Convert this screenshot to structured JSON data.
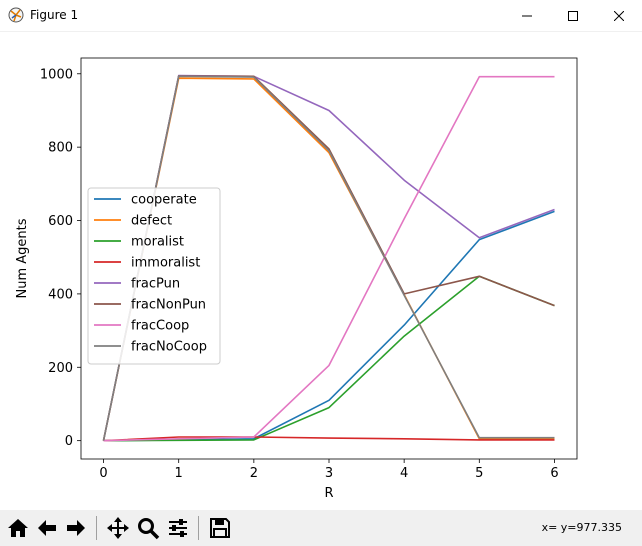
{
  "window": {
    "title": "Figure 1",
    "icons": [
      "matplotlib-icon",
      "minimize-icon",
      "maximize-icon",
      "close-icon"
    ]
  },
  "toolbar": {
    "buttons": [
      "home-icon",
      "back-icon",
      "forward-icon",
      "pan-icon",
      "zoom-icon",
      "configure-subplots-icon",
      "save-icon"
    ],
    "coords": "x= y=977.335"
  },
  "chart_data": {
    "type": "line",
    "xlabel": "R",
    "ylabel": "Num Agents",
    "x": [
      0,
      1,
      2,
      3,
      4,
      5,
      6
    ],
    "xticks": [
      "0",
      "1",
      "2",
      "3",
      "4",
      "5",
      "6"
    ],
    "yticks": [
      "0",
      "200",
      "400",
      "600",
      "800",
      "1000"
    ],
    "xlim": [
      -0.3,
      6.3
    ],
    "ylim": [
      -50,
      1043
    ],
    "legend_position": "center-left",
    "grid": false,
    "series": [
      {
        "name": "cooperate",
        "color": "#1f77b4",
        "values": [
          0,
          2,
          5,
          110,
          315,
          548,
          625
        ]
      },
      {
        "name": "defect",
        "color": "#ff7f0e",
        "values": [
          0,
          988,
          986,
          785,
          398,
          5,
          5
        ]
      },
      {
        "name": "moralist",
        "color": "#2ca02c",
        "values": [
          0,
          1,
          2,
          90,
          285,
          448,
          368
        ]
      },
      {
        "name": "immoralist",
        "color": "#d62728",
        "values": [
          0,
          10,
          10,
          7,
          5,
          2,
          2
        ]
      },
      {
        "name": "fracPun",
        "color": "#9467bd",
        "values": [
          0,
          995,
          993,
          900,
          710,
          553,
          630
        ]
      },
      {
        "name": "fracNonPun",
        "color": "#8c564b",
        "values": [
          0,
          994,
          993,
          795,
          400,
          448,
          368
        ]
      },
      {
        "name": "fracCoop",
        "color": "#e377c2",
        "values": [
          0,
          5,
          10,
          205,
          605,
          992,
          992
        ]
      },
      {
        "name": "fracNoCoop",
        "color": "#7f7f7f",
        "values": [
          0,
          993,
          991,
          790,
          396,
          8,
          8
        ]
      }
    ]
  }
}
